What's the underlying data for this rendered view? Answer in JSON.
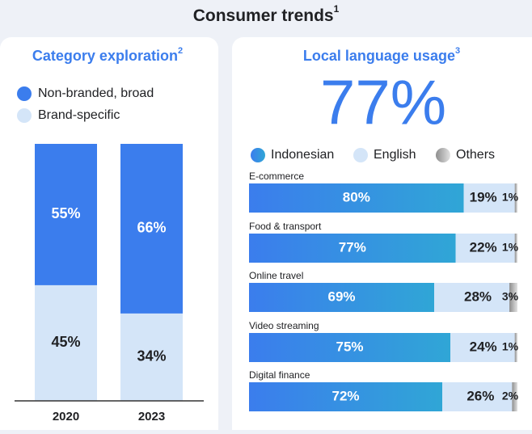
{
  "title": "Consumer trends",
  "title_note": "1",
  "chart_data": [
    {
      "type": "stacked-bar",
      "title": "Category exploration",
      "title_note": "2",
      "categories": [
        "2020",
        "2023"
      ],
      "ylim": [
        0,
        100
      ],
      "series": [
        {
          "name": "Non-branded, broad",
          "color": "#3b7ded",
          "values": [
            55,
            66
          ],
          "value_labels": [
            "55%",
            "66%"
          ]
        },
        {
          "name": "Brand-specific",
          "color": "#d4e5f8",
          "values": [
            45,
            34
          ],
          "value_labels": [
            "45%",
            "34%"
          ]
        }
      ]
    },
    {
      "type": "stacked-hbar",
      "title": "Local language usage",
      "title_note": "3",
      "headline": "77%",
      "categories": [
        "E-commerce",
        "Food & transport",
        "Online travel",
        "Video streaming",
        "Digital finance"
      ],
      "xlim": [
        0,
        100
      ],
      "series": [
        {
          "name": "Indonesian",
          "color": "#3b7ded",
          "values": [
            80,
            77,
            69,
            75,
            72
          ],
          "value_labels": [
            "80%",
            "77%",
            "69%",
            "75%",
            "72%"
          ]
        },
        {
          "name": "English",
          "color": "#d4e5f8",
          "values": [
            19,
            22,
            28,
            24,
            26
          ],
          "value_labels": [
            "19%",
            "22%",
            "28%",
            "24%",
            "26%"
          ]
        },
        {
          "name": "Others",
          "color": "#b9b9b9",
          "values": [
            1,
            1,
            3,
            1,
            2
          ],
          "value_labels": [
            "1%",
            "1%",
            "3%",
            "1%",
            "2%"
          ]
        }
      ]
    }
  ]
}
